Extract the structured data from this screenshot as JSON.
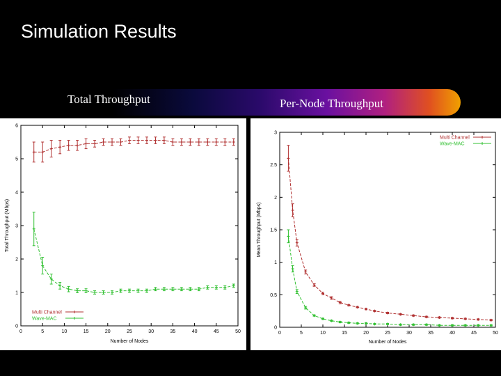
{
  "slide": {
    "title": "Simulation Results",
    "left_caption": "Total Throughput",
    "right_caption": "Per-Node Throughput"
  },
  "colors": {
    "multi": "#b03030",
    "wave": "#30c030",
    "axis": "#000000"
  },
  "chart_data": [
    {
      "type": "line",
      "title": "Total Throughput",
      "xlabel": "Number of Nodes",
      "ylabel": "Total Throughput (Mbps)",
      "xlim": [
        0,
        50
      ],
      "ylim": [
        0,
        6
      ],
      "xticks": [
        0,
        5,
        10,
        15,
        20,
        25,
        30,
        35,
        40,
        45,
        50
      ],
      "yticks": [
        0,
        1,
        2,
        3,
        4,
        5,
        6
      ],
      "legend_position": "bottom-left",
      "series": [
        {
          "name": "Multi Channel",
          "color": "#b03030",
          "x": [
            3,
            5,
            7,
            9,
            11,
            13,
            15,
            17,
            19,
            21,
            23,
            25,
            27,
            29,
            31,
            33,
            35,
            37,
            39,
            41,
            43,
            45,
            47,
            49
          ],
          "y": [
            5.2,
            5.2,
            5.3,
            5.35,
            5.4,
            5.4,
            5.45,
            5.45,
            5.5,
            5.5,
            5.5,
            5.55,
            5.55,
            5.55,
            5.55,
            5.55,
            5.5,
            5.5,
            5.5,
            5.5,
            5.5,
            5.5,
            5.5,
            5.5
          ],
          "err": [
            0.3,
            0.3,
            0.25,
            0.2,
            0.15,
            0.15,
            0.15,
            0.1,
            0.1,
            0.1,
            0.1,
            0.1,
            0.1,
            0.1,
            0.1,
            0.1,
            0.1,
            0.1,
            0.1,
            0.1,
            0.1,
            0.1,
            0.1,
            0.1
          ]
        },
        {
          "name": "Wave-MAC",
          "color": "#30c030",
          "x": [
            3,
            5,
            7,
            9,
            11,
            13,
            15,
            17,
            19,
            21,
            23,
            25,
            27,
            29,
            31,
            33,
            35,
            37,
            39,
            41,
            43,
            45,
            47,
            49
          ],
          "y": [
            2.9,
            1.8,
            1.4,
            1.2,
            1.1,
            1.05,
            1.05,
            1.0,
            1.0,
            1.0,
            1.05,
            1.05,
            1.05,
            1.05,
            1.1,
            1.1,
            1.1,
            1.1,
            1.1,
            1.1,
            1.15,
            1.15,
            1.15,
            1.2
          ],
          "err": [
            0.5,
            0.25,
            0.15,
            0.1,
            0.08,
            0.06,
            0.06,
            0.05,
            0.05,
            0.05,
            0.05,
            0.05,
            0.05,
            0.05,
            0.05,
            0.05,
            0.05,
            0.05,
            0.05,
            0.05,
            0.05,
            0.05,
            0.05,
            0.05
          ]
        }
      ]
    },
    {
      "type": "line",
      "title": "Per-Node Throughput",
      "xlabel": "Number of Nodes",
      "ylabel": "Mean Throughput (Mbps)",
      "xlim": [
        0,
        50
      ],
      "ylim": [
        0,
        3
      ],
      "xticks": [
        0,
        5,
        10,
        15,
        20,
        25,
        30,
        35,
        40,
        45,
        50
      ],
      "yticks": [
        0,
        0.5,
        1,
        1.5,
        2,
        2.5,
        3
      ],
      "legend_position": "top-right",
      "series": [
        {
          "name": "Multi Channel",
          "color": "#b03030",
          "x": [
            2,
            3,
            4,
            6,
            8,
            10,
            12,
            14,
            16,
            18,
            20,
            22,
            25,
            28,
            31,
            34,
            37,
            40,
            43,
            46,
            49
          ],
          "y": [
            2.6,
            1.8,
            1.3,
            0.85,
            0.65,
            0.52,
            0.45,
            0.38,
            0.34,
            0.31,
            0.28,
            0.25,
            0.22,
            0.2,
            0.18,
            0.16,
            0.15,
            0.14,
            0.13,
            0.12,
            0.11
          ],
          "err": [
            0.2,
            0.1,
            0.05,
            0.03,
            0.02,
            0.02,
            0.02,
            0.02,
            0.01,
            0.01,
            0.01,
            0.01,
            0.01,
            0.01,
            0.01,
            0.01,
            0.01,
            0.01,
            0.01,
            0.01,
            0.01
          ]
        },
        {
          "name": "Wave-MAC",
          "color": "#30c030",
          "x": [
            2,
            3,
            4,
            6,
            8,
            10,
            12,
            14,
            16,
            18,
            20,
            22,
            25,
            28,
            31,
            34,
            37,
            40,
            43,
            46,
            49
          ],
          "y": [
            1.4,
            0.9,
            0.55,
            0.3,
            0.18,
            0.13,
            0.1,
            0.08,
            0.07,
            0.06,
            0.06,
            0.05,
            0.05,
            0.04,
            0.04,
            0.04,
            0.03,
            0.03,
            0.03,
            0.03,
            0.03
          ],
          "err": [
            0.1,
            0.05,
            0.03,
            0.02,
            0.01,
            0.01,
            0.01,
            0.01,
            0.01,
            0.01,
            0.01,
            0.01,
            0.01,
            0.01,
            0.01,
            0.01,
            0.01,
            0.01,
            0.01,
            0.01,
            0.01
          ]
        }
      ]
    }
  ]
}
